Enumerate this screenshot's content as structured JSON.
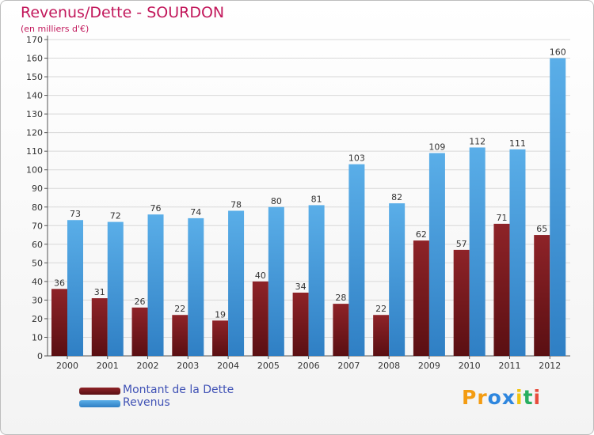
{
  "chart_data": {
    "type": "bar",
    "title": "Revenus/Dette - SOURDON",
    "subtitle": "(en milliers d'€)",
    "categories": [
      "2000",
      "2001",
      "2002",
      "2003",
      "2004",
      "2005",
      "2006",
      "2007",
      "2008",
      "2009",
      "2010",
      "2011",
      "2012"
    ],
    "series": [
      {
        "name": "Montant de la Dette",
        "color": "#7a1a1f",
        "values": [
          36,
          31,
          26,
          22,
          19,
          40,
          34,
          28,
          22,
          62,
          57,
          71,
          65
        ]
      },
      {
        "name": "Revenus",
        "color": "#3d9be0",
        "values": [
          73,
          72,
          76,
          74,
          78,
          80,
          81,
          103,
          82,
          109,
          112,
          111,
          160
        ]
      }
    ],
    "ylim": [
      0,
      170
    ],
    "yticks": [
      0,
      10,
      20,
      30,
      40,
      50,
      60,
      70,
      80,
      90,
      100,
      110,
      120,
      130,
      140,
      150,
      160,
      170
    ],
    "grid": true,
    "legend": "bottom-left"
  },
  "logo": {
    "text": "Proxiti",
    "letters": [
      "P",
      "r",
      "o",
      "x",
      "i",
      "t",
      "i"
    ],
    "colors": [
      "#f39c12",
      "#f39c12",
      "#2e86de",
      "#2e86de",
      "#f1c40f",
      "#27ae60",
      "#e74c3c"
    ]
  }
}
